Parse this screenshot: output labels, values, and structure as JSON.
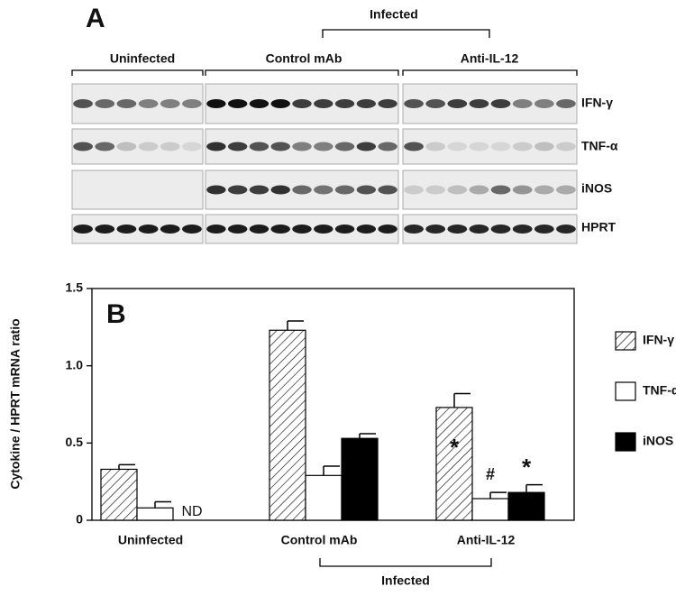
{
  "panel_a": {
    "label": "A",
    "group_title": "Infected",
    "groups": [
      "Uninfected",
      "Control mAb",
      "Anti-IL-12"
    ],
    "rows": [
      "IFN-γ",
      "TNF-α",
      "iNOS",
      "HPRT"
    ]
  },
  "chart_data": {
    "type": "bar",
    "panel_label": "B",
    "y_label": "Cytokine / HPRT mRNA ratio",
    "categories": [
      "Uninfected",
      "Control mAb",
      "Anti-IL-12"
    ],
    "series": [
      {
        "name": "IFN-γ",
        "color": "#ffffff",
        "hatch": true,
        "values": [
          0.33,
          1.23,
          0.73
        ],
        "errors": [
          0.03,
          0.06,
          0.09
        ]
      },
      {
        "name": "TNF-α",
        "color": "#ffffff",
        "values": [
          0.08,
          0.29,
          0.14
        ],
        "errors": [
          0.04,
          0.06,
          0.04
        ]
      },
      {
        "name": "iNOS",
        "color": "#000000",
        "values": [
          null,
          0.53,
          0.18
        ],
        "errors": [
          null,
          0.03,
          0.05
        ]
      }
    ],
    "ylim": [
      0,
      1.5
    ],
    "yticks": [
      0,
      0.5,
      {
        "value": 1.0,
        "label": "1.0"
      },
      {
        "value": 1.5,
        "label": "1.5"
      }
    ],
    "legend": "right",
    "annotations": [
      "ND",
      "*",
      "#",
      "*"
    ],
    "group_title": "Infected"
  }
}
